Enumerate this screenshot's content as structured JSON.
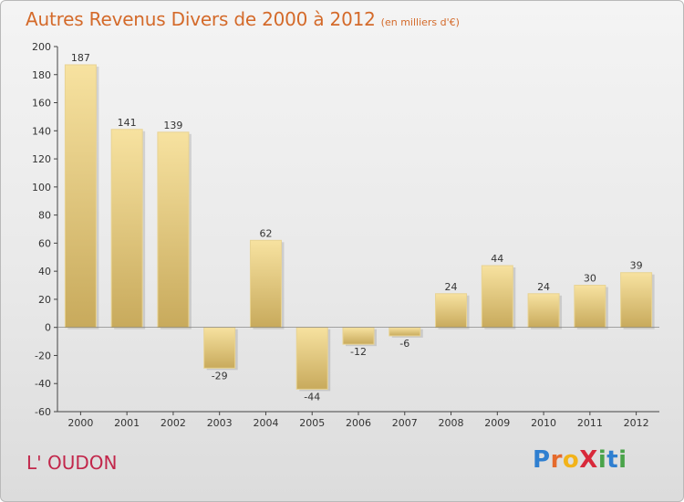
{
  "header": {
    "title": "Autres Revenus Divers de 2000 à 2012",
    "unit": "(en milliers d'€)"
  },
  "footer": {
    "location": "L' OUDON",
    "brand": "Proxiti",
    "brand_letters": [
      {
        "ch": "P",
        "color": "#2f7fd0"
      },
      {
        "ch": "r",
        "color": "#e56a2c"
      },
      {
        "ch": "o",
        "color": "#f2b31a"
      },
      {
        "ch": "X",
        "color": "#d8293a"
      },
      {
        "ch": "i",
        "color": "#4aa34a"
      },
      {
        "ch": "t",
        "color": "#2f7fd0"
      },
      {
        "ch": "i",
        "color": "#4aa34a"
      }
    ]
  },
  "chart_data": {
    "type": "bar",
    "title": "Autres Revenus Divers de 2000 à 2012",
    "subtitle": "(en milliers d'€)",
    "categories": [
      "2000",
      "2001",
      "2002",
      "2003",
      "2004",
      "2005",
      "2006",
      "2007",
      "2008",
      "2009",
      "2010",
      "2011",
      "2012"
    ],
    "values": [
      187,
      141,
      139,
      -29,
      62,
      -44,
      -12,
      -6,
      24,
      44,
      24,
      30,
      39
    ],
    "ylim": [
      -60,
      200
    ],
    "yticks": [
      -60,
      -40,
      -20,
      0,
      20,
      40,
      60,
      80,
      100,
      120,
      140,
      160,
      180,
      200
    ],
    "grid": false,
    "colors": {
      "bar_light": "#f7e2a0",
      "bar_dark": "#c8aa5c",
      "title": "#d46a2a",
      "location": "#c2274b"
    }
  }
}
